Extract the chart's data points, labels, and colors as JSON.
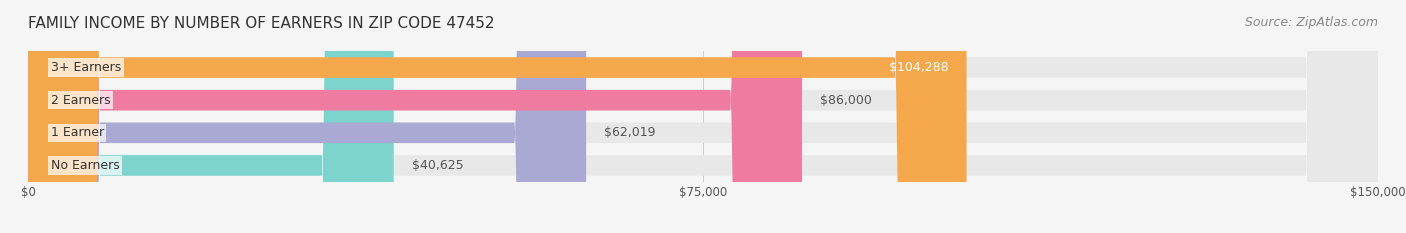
{
  "title": "FAMILY INCOME BY NUMBER OF EARNERS IN ZIP CODE 47452",
  "source": "Source: ZipAtlas.com",
  "categories": [
    "No Earners",
    "1 Earner",
    "2 Earners",
    "3+ Earners"
  ],
  "values": [
    40625,
    62019,
    86000,
    104288
  ],
  "bar_colors": [
    "#7DD4CC",
    "#A9A9D4",
    "#F07BA0",
    "#F5A84B"
  ],
  "bar_labels": [
    "$40,625",
    "$62,019",
    "$86,000",
    "$104,288"
  ],
  "label_colors": [
    "#555555",
    "#555555",
    "#555555",
    "#ffffff"
  ],
  "x_ticks": [
    0,
    75000,
    150000
  ],
  "x_tick_labels": [
    "$0",
    "$75,000",
    "$150,000"
  ],
  "xlim": [
    0,
    150000
  ],
  "background_color": "#f5f5f5",
  "bar_background_color": "#e8e8e8",
  "title_fontsize": 11,
  "source_fontsize": 9,
  "label_fontsize": 9,
  "bar_height": 0.62
}
